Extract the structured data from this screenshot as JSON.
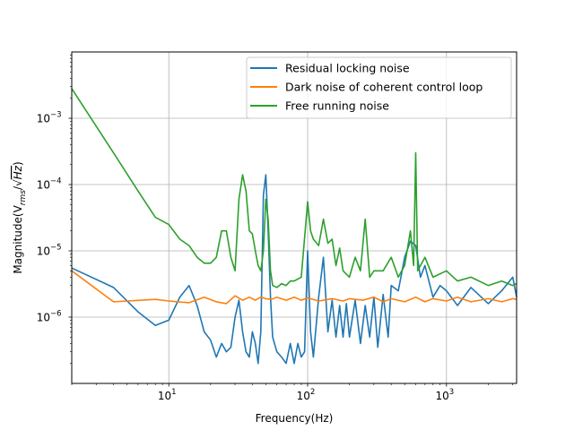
{
  "chart_data": {
    "type": "line",
    "title": "",
    "xlabel": "Frequency(Hz)",
    "ylabel": "Magnitude(V_rms/√Hz)",
    "x_scale": "log",
    "y_scale": "log",
    "xlim": [
      2,
      3200
    ],
    "ylim": [
      1e-07,
      0.01
    ],
    "grid": true,
    "legend_position": "top-right",
    "x_ticks": [
      {
        "value": 10,
        "base": "10",
        "exp": "1"
      },
      {
        "value": 100,
        "base": "10",
        "exp": "2"
      },
      {
        "value": 1000,
        "base": "10",
        "exp": "3"
      }
    ],
    "y_ticks": [
      {
        "value": 1e-06,
        "base": "10",
        "exp": "−6"
      },
      {
        "value": 1e-05,
        "base": "10",
        "exp": "−5"
      },
      {
        "value": 0.0001,
        "base": "10",
        "exp": "−4"
      },
      {
        "value": 0.001,
        "base": "10",
        "exp": "−3"
      }
    ],
    "series": [
      {
        "name": "Residual locking noise",
        "color": "#1f77b4",
        "points": [
          [
            2,
            5.5e-06
          ],
          [
            4,
            2.8e-06
          ],
          [
            6,
            1.2e-06
          ],
          [
            8,
            7.5e-07
          ],
          [
            10,
            9e-07
          ],
          [
            12,
            2e-06
          ],
          [
            14,
            3e-06
          ],
          [
            16,
            1.5e-06
          ],
          [
            18,
            6e-07
          ],
          [
            20,
            4.5e-07
          ],
          [
            22,
            2.5e-07
          ],
          [
            24,
            4e-07
          ],
          [
            26,
            3e-07
          ],
          [
            28,
            3.5e-07
          ],
          [
            30,
            1e-06
          ],
          [
            32,
            1.8e-06
          ],
          [
            34,
            6e-07
          ],
          [
            36,
            3e-07
          ],
          [
            38,
            2.5e-07
          ],
          [
            40,
            6e-07
          ],
          [
            42,
            4e-07
          ],
          [
            44,
            2e-07
          ],
          [
            46,
            6e-07
          ],
          [
            48,
            7e-05
          ],
          [
            50,
            0.00014
          ],
          [
            52,
            2e-05
          ],
          [
            54,
            2e-06
          ],
          [
            56,
            5e-07
          ],
          [
            60,
            3e-07
          ],
          [
            65,
            2.5e-07
          ],
          [
            70,
            2e-07
          ],
          [
            75,
            4e-07
          ],
          [
            80,
            2e-07
          ],
          [
            85,
            4e-07
          ],
          [
            90,
            2.5e-07
          ],
          [
            95,
            3e-07
          ],
          [
            100,
            1e-05
          ],
          [
            105,
            6e-07
          ],
          [
            110,
            2.5e-07
          ],
          [
            120,
            2e-06
          ],
          [
            130,
            8e-06
          ],
          [
            140,
            6e-07
          ],
          [
            150,
            1.8e-06
          ],
          [
            160,
            5e-07
          ],
          [
            170,
            1.5e-06
          ],
          [
            180,
            5e-07
          ],
          [
            190,
            1.6e-06
          ],
          [
            200,
            5e-07
          ],
          [
            220,
            1.8e-06
          ],
          [
            240,
            4e-07
          ],
          [
            260,
            1.5e-06
          ],
          [
            280,
            5e-07
          ],
          [
            300,
            2e-06
          ],
          [
            320,
            3.5e-07
          ],
          [
            350,
            2.2e-06
          ],
          [
            380,
            5e-07
          ],
          [
            400,
            3e-06
          ],
          [
            450,
            2.5e-06
          ],
          [
            500,
            8e-06
          ],
          [
            550,
            1.4e-05
          ],
          [
            600,
            1.2e-05
          ],
          [
            650,
            4e-06
          ],
          [
            700,
            6e-06
          ],
          [
            800,
            2e-06
          ],
          [
            900,
            3e-06
          ],
          [
            1000,
            2.5e-06
          ],
          [
            1200,
            1.5e-06
          ],
          [
            1500,
            2.8e-06
          ],
          [
            2000,
            1.6e-06
          ],
          [
            2500,
            2.5e-06
          ],
          [
            3000,
            4e-06
          ],
          [
            3200,
            2e-06
          ]
        ]
      },
      {
        "name": "Dark noise of coherent control loop",
        "color": "#ff7f0e",
        "points": [
          [
            2,
            5e-06
          ],
          [
            4,
            1.7e-06
          ],
          [
            8,
            1.85e-06
          ],
          [
            10,
            1.75e-06
          ],
          [
            14,
            1.65e-06
          ],
          [
            18,
            2e-06
          ],
          [
            22,
            1.7e-06
          ],
          [
            26,
            1.6e-06
          ],
          [
            30,
            2.1e-06
          ],
          [
            34,
            1.8e-06
          ],
          [
            38,
            2e-06
          ],
          [
            42,
            1.8e-06
          ],
          [
            46,
            2e-06
          ],
          [
            50,
            1.9e-06
          ],
          [
            55,
            1.85e-06
          ],
          [
            60,
            2e-06
          ],
          [
            70,
            1.8e-06
          ],
          [
            80,
            2e-06
          ],
          [
            90,
            1.8e-06
          ],
          [
            100,
            1.95e-06
          ],
          [
            120,
            1.75e-06
          ],
          [
            150,
            1.9e-06
          ],
          [
            180,
            1.75e-06
          ],
          [
            200,
            1.9e-06
          ],
          [
            250,
            1.8e-06
          ],
          [
            300,
            2e-06
          ],
          [
            350,
            1.7e-06
          ],
          [
            400,
            1.9e-06
          ],
          [
            500,
            1.7e-06
          ],
          [
            600,
            2e-06
          ],
          [
            700,
            1.7e-06
          ],
          [
            800,
            1.9e-06
          ],
          [
            1000,
            1.75e-06
          ],
          [
            1200,
            2e-06
          ],
          [
            1500,
            1.7e-06
          ],
          [
            2000,
            1.9e-06
          ],
          [
            2500,
            1.7e-06
          ],
          [
            3000,
            1.9e-06
          ],
          [
            3200,
            1.85e-06
          ]
        ]
      },
      {
        "name": "Free running noise",
        "color": "#2ca02c",
        "points": [
          [
            2,
            0.0028
          ],
          [
            4,
            0.0003
          ],
          [
            6,
            8e-05
          ],
          [
            8,
            3.2e-05
          ],
          [
            10,
            2.5e-05
          ],
          [
            12,
            1.5e-05
          ],
          [
            14,
            1.2e-05
          ],
          [
            16,
            8e-06
          ],
          [
            18,
            6.5e-06
          ],
          [
            20,
            6.5e-06
          ],
          [
            22,
            8e-06
          ],
          [
            24,
            2e-05
          ],
          [
            26,
            2e-05
          ],
          [
            28,
            8e-06
          ],
          [
            30,
            5e-06
          ],
          [
            32,
            6e-05
          ],
          [
            34,
            0.00014
          ],
          [
            36,
            8e-05
          ],
          [
            38,
            2e-05
          ],
          [
            40,
            1.8e-05
          ],
          [
            42,
            1e-05
          ],
          [
            44,
            6e-06
          ],
          [
            46,
            5e-06
          ],
          [
            48,
            1e-05
          ],
          [
            50,
            6e-05
          ],
          [
            52,
            3e-05
          ],
          [
            54,
            5e-06
          ],
          [
            56,
            3e-06
          ],
          [
            60,
            2.8e-06
          ],
          [
            65,
            3.2e-06
          ],
          [
            70,
            3e-06
          ],
          [
            75,
            3.5e-06
          ],
          [
            80,
            3.5e-06
          ],
          [
            90,
            4e-06
          ],
          [
            100,
            5.5e-05
          ],
          [
            105,
            2e-05
          ],
          [
            110,
            1.5e-05
          ],
          [
            120,
            1.2e-05
          ],
          [
            130,
            3e-05
          ],
          [
            140,
            1.3e-05
          ],
          [
            150,
            1.5e-05
          ],
          [
            160,
            6e-06
          ],
          [
            170,
            1.1e-05
          ],
          [
            180,
            5e-06
          ],
          [
            200,
            4e-06
          ],
          [
            220,
            8e-06
          ],
          [
            240,
            5e-06
          ],
          [
            260,
            3e-05
          ],
          [
            280,
            4e-06
          ],
          [
            300,
            5e-06
          ],
          [
            350,
            5e-06
          ],
          [
            400,
            8e-06
          ],
          [
            450,
            4e-06
          ],
          [
            500,
            6e-06
          ],
          [
            550,
            2e-05
          ],
          [
            580,
            6e-06
          ],
          [
            600,
            0.0003
          ],
          [
            620,
            5e-06
          ],
          [
            700,
            8e-06
          ],
          [
            800,
            4e-06
          ],
          [
            1000,
            5e-06
          ],
          [
            1200,
            3.5e-06
          ],
          [
            1500,
            4e-06
          ],
          [
            2000,
            3e-06
          ],
          [
            2500,
            3.5e-06
          ],
          [
            3000,
            3e-06
          ],
          [
            3200,
            3.2e-06
          ]
        ]
      }
    ]
  }
}
